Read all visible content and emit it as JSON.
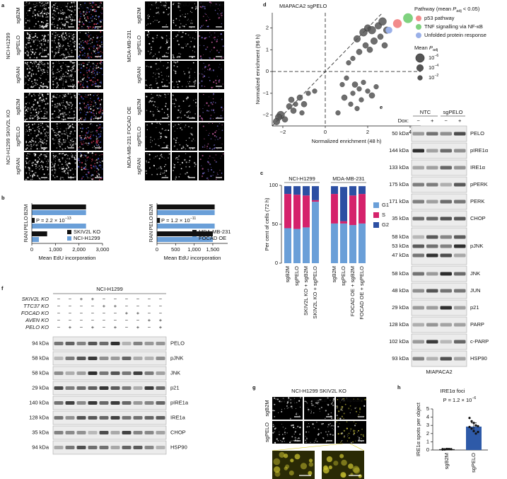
{
  "a": {
    "label": "a",
    "columns": [
      "Hoechst",
      "EdU",
      "Composite"
    ],
    "groups": [
      {
        "name": "NCI-H1299",
        "rows": [
          "sgB2M",
          "sgPELO",
          "sgRAN"
        ]
      },
      {
        "name": "NCI-H1299 SKIV2L KO",
        "rows": [
          "sgB2M",
          "sgPELO",
          "sgRAN"
        ]
      },
      {
        "name": "MDA-MB-231",
        "rows": [
          "sgB2M",
          "sgPELO",
          "sgRAN"
        ]
      },
      {
        "name": "MDA-MB-231 FOCAD OE",
        "rows": [
          "sgB2M",
          "sgPELO",
          "sgRAN"
        ]
      }
    ]
  },
  "b": {
    "label": "b",
    "charts": [
      {
        "type": "bar",
        "categories": [
          "B2M",
          "PELO",
          "RAN"
        ],
        "xlabel": "Mean EdU incorporation",
        "series": [
          {
            "name": "SKIV2L KO",
            "color": "#111111",
            "values": [
              2300,
              120,
              650
            ]
          },
          {
            "name": "NCI-H1299",
            "color": "#6a9fd8",
            "values": [
              2300,
              2300,
              300
            ]
          }
        ],
        "xlim": [
          0,
          3000
        ],
        "xticks": [
          0,
          {
            "value": 1000,
            "label": "1,000"
          },
          {
            "value": 2000,
            "label": "2,000"
          },
          {
            "value": 3000,
            "label": "3,000"
          }
        ],
        "annotation": {
          "text": "P = 2.2 × 10",
          "sup": "−13"
        }
      },
      {
        "type": "bar",
        "categories": [
          "B2M",
          "PELO",
          "RAN"
        ],
        "xlabel": "Mean EdU incorporation",
        "series": [
          {
            "name": "MDA-MB-231",
            "color": "#111111",
            "values": [
              1550,
              80,
              1500
            ]
          },
          {
            "name": "FOCAD OE",
            "color": "#6a9fd8",
            "values": [
              1550,
              1550,
              1500
            ]
          }
        ],
        "xlim": [
          0,
          1900
        ],
        "xticks": [
          0,
          500,
          {
            "value": 1000,
            "label": "1,000"
          },
          {
            "value": 1500,
            "label": "1,500"
          }
        ],
        "annotation": {
          "text": "P = 1.2 × 10",
          "sup": "−11"
        }
      }
    ]
  },
  "c": {
    "label": "c",
    "type": "stacked_bar",
    "ylabel": "Per cent of cells (72 h)",
    "groups": [
      {
        "name": "NCI-H1299",
        "categories": [
          "sgB2M",
          "sgPELO",
          "SKIV2L KO + sgB2M",
          "SKIV2L KO + sgPELO"
        ]
      },
      {
        "name": "MDA-MB-231",
        "categories": [
          "sgB2M",
          "sgPELO",
          "FOCAD OE + sgB2M",
          "FOCAD OE + sgPELO"
        ]
      }
    ],
    "series": [
      {
        "name": "G1",
        "color": "#6a9fd8",
        "values": [
          45,
          44,
          46,
          79,
          51,
          51,
          49,
          51
        ]
      },
      {
        "name": "S",
        "color": "#d5226b",
        "values": [
          44,
          44,
          41,
          2,
          38,
          3,
          38,
          38
        ]
      },
      {
        "name": "G2",
        "color": "#2c4fa3",
        "values": [
          10,
          11,
          12,
          18,
          10,
          44,
          12,
          10
        ]
      }
    ],
    "ylim": [
      0,
      100
    ],
    "yticks": [
      0,
      50,
      100
    ]
  },
  "d": {
    "label": "d",
    "type": "scatter",
    "title": "MIAPACA2 sgPELO",
    "xlabel": "Normalized enrichment (48 h)",
    "ylabel": "Normalized enrichment (96 h)",
    "xlim": [
      -2.5,
      4.5
    ],
    "xticks": [
      {
        "value": -2,
        "label": "−2"
      },
      0,
      2,
      4
    ],
    "ylim": [
      -2.5,
      2.7
    ],
    "yticks": [
      {
        "value": -2,
        "label": "−2"
      },
      {
        "value": -1,
        "label": "−1"
      },
      0,
      1,
      2
    ],
    "color": "#555555",
    "x": [
      -2.1,
      -2.2,
      -1.9,
      -2.3,
      -1.7,
      -1.5,
      -1.4,
      -1.2,
      -1.1,
      -1.6,
      -0.8,
      -0.5,
      -1.0,
      1.5,
      1.8,
      2.0,
      2.2,
      2.5,
      2.6,
      2.3,
      1.9,
      2.7,
      2.9,
      2.1,
      1.6,
      2.8,
      1.3,
      1.1,
      0.8,
      1.0,
      1.4,
      1.6,
      1.3,
      0.9,
      1.8,
      2.0,
      2.2,
      1.2,
      0.6,
      1.5,
      2.4,
      1.7
    ],
    "y": [
      -2.0,
      -2.1,
      -2.2,
      -2.3,
      -1.6,
      -1.8,
      -1.5,
      -1.2,
      -1.9,
      -1.3,
      -1.0,
      -0.9,
      -1.5,
      1.5,
      1.8,
      2.0,
      1.9,
      2.1,
      1.6,
      1.4,
      1.2,
      2.3,
      1.9,
      1.0,
      0.9,
      1.2,
      0.6,
      0.4,
      -0.6,
      -0.3,
      -0.6,
      -0.8,
      -1.0,
      -1.2,
      -0.5,
      -0.9,
      -1.1,
      -1.5,
      -1.9,
      -1.7,
      -0.7,
      -1.3
    ],
    "padj": [
      1e-05,
      0.0001,
      0.001,
      0.0001,
      0.001,
      0.001,
      0.01,
      0.001,
      0.01,
      0.001,
      0.01,
      0.01,
      0.001,
      0.0001,
      1e-05,
      0.0001,
      1e-05,
      0.0001,
      0.001,
      0.0001,
      0.001,
      1e-05,
      0.0001,
      0.001,
      0.001,
      0.001,
      0.01,
      0.01,
      0.01,
      0.01,
      0.001,
      0.01,
      0.01,
      0.001,
      0.01,
      0.01,
      0.001,
      0.01,
      0.01,
      0.01,
      0.01,
      0.01
    ],
    "series": [
      {
        "name": "p53 pathway",
        "color": "#f28b8b",
        "x": [
          3.4
        ],
        "y": [
          2.2
        ],
        "padj": [
          1e-06
        ]
      },
      {
        "name": "TNF signalling via NF-κB",
        "color": "#7fd27f",
        "x": [
          3.9
        ],
        "y": [
          2.45
        ],
        "padj": [
          1e-07
        ]
      },
      {
        "name": "Unfolded protein response",
        "color": "#9ab0e8",
        "x": [
          3.0
        ],
        "y": [
          1.9
        ],
        "padj": [
          0.0001
        ]
      }
    ],
    "legend_title": {
      "text": "Pathway (mean ",
      "var": "P",
      "sub": "adj",
      "tail": " < 0.05)"
    },
    "size_legend": {
      "title": {
        "text": "Mean ",
        "var": "P",
        "sub": "adj"
      },
      "entries": [
        {
          "value": 1e-06,
          "label": "10",
          "sup": "−6"
        },
        {
          "value": 0.0001,
          "label": "10",
          "sup": "−4"
        },
        {
          "value": 0.01,
          "label": "10",
          "sup": "−2"
        }
      ]
    }
  },
  "e": {
    "label": "e",
    "dox_label": "Dox:",
    "groups": [
      "NTC",
      "sgPELO"
    ],
    "dox": [
      "−",
      "+",
      "−",
      "+"
    ],
    "rows": [
      {
        "kda": [
          "50 kDa"
        ],
        "protein": "PELO"
      },
      {
        "kda": [
          "144 kDa"
        ],
        "protein": "pIRE1α"
      },
      {
        "kda": [
          "133 kDa"
        ],
        "protein": "IRE1α"
      },
      {
        "kda": [
          "175 kDa"
        ],
        "protein": "pPERK"
      },
      {
        "kda": [
          "171 kDa"
        ],
        "protein": "PERK"
      },
      {
        "kda": [
          "35 kDa"
        ],
        "protein": "CHOP"
      },
      {
        "kda": [
          "58 kDa",
          "53 kDa",
          "47 kDa"
        ],
        "protein": "pJNK"
      },
      {
        "kda": [
          "58 kDa"
        ],
        "protein": "JNK"
      },
      {
        "kda": [
          "48 kDa"
        ],
        "protein": "JUN"
      },
      {
        "kda": [
          "29 kDa"
        ],
        "protein": "p21"
      },
      {
        "kda": [
          "128 kDa"
        ],
        "protein": "PARP"
      },
      {
        "kda": [
          "102 kDa"
        ],
        "protein": "c-PARP"
      },
      {
        "kda": [
          "93 kDa"
        ],
        "protein": "HSP90"
      }
    ],
    "cell_line": "MIAPACA2"
  },
  "f": {
    "label": "f",
    "title": "NCI-H1299",
    "conditions": [
      {
        "name": "SKIV2L KO",
        "signs": [
          "−",
          "−",
          "+",
          "+",
          "−",
          "−",
          "−",
          "−",
          "−",
          "−"
        ]
      },
      {
        "name": "TTC37 KO",
        "signs": [
          "−",
          "−",
          "−",
          "−",
          "+",
          "+",
          "−",
          "−",
          "−",
          "−"
        ]
      },
      {
        "name": "FOCAD KO",
        "signs": [
          "−",
          "−",
          "−",
          "−",
          "−",
          "−",
          "+",
          "+",
          "−",
          "−"
        ]
      },
      {
        "name": "AVEN KO",
        "signs": [
          "−",
          "−",
          "−",
          "−",
          "−",
          "−",
          "−",
          "−",
          "+",
          "+"
        ]
      },
      {
        "name": "PELO KO",
        "signs": [
          "−",
          "+",
          "−",
          "+",
          "−",
          "+",
          "−",
          "+",
          "−",
          "+"
        ]
      }
    ],
    "rows": [
      {
        "kda": "94 kDa",
        "protein": "PELO"
      },
      {
        "kda": "58 kDa",
        "protein": "pJNK"
      },
      {
        "kda": "58 kDa",
        "protein": "JNK"
      },
      {
        "kda": "29 kDa",
        "protein": "p21"
      },
      {
        "kda": "140 kDa",
        "protein": "pIRE1a"
      },
      {
        "kda": "128 kDa",
        "protein": "IRE1a"
      },
      {
        "kda": "35 kDa",
        "protein": "CHOP"
      },
      {
        "kda": "94 kDa",
        "protein": "HSP90"
      }
    ]
  },
  "g": {
    "label": "g",
    "title": "NCI-H1299 SKIV2L KO",
    "columns": [
      "Nuclei",
      "IRE1α",
      "Composite"
    ],
    "rows": [
      "sgB2M",
      "sgPELO"
    ]
  },
  "h": {
    "label": "h",
    "type": "bar",
    "title": "IRE1α foci",
    "ylabel": "IRE1α spots per object",
    "categories": [
      "sgB2M",
      "sgPELO"
    ],
    "values": [
      0.1,
      2.85
    ],
    "errors": [
      0.05,
      0.45
    ],
    "colors": [
      "#222222",
      "#2e5aa8"
    ],
    "points": [
      [
        0.05,
        0.08,
        0.1,
        0.12,
        0.09,
        0.11,
        0.07,
        0.13,
        0.1,
        0.1
      ],
      [
        3.9,
        3.5,
        3.3,
        3.0,
        2.9,
        2.8,
        2.6,
        2.3,
        2.0,
        2.2
      ]
    ],
    "ylim": [
      0,
      5
    ],
    "yticks": [
      0,
      1,
      2,
      3,
      4,
      5
    ],
    "annotation": {
      "text": "P = 1.2 × 10",
      "sup": "−6"
    }
  }
}
